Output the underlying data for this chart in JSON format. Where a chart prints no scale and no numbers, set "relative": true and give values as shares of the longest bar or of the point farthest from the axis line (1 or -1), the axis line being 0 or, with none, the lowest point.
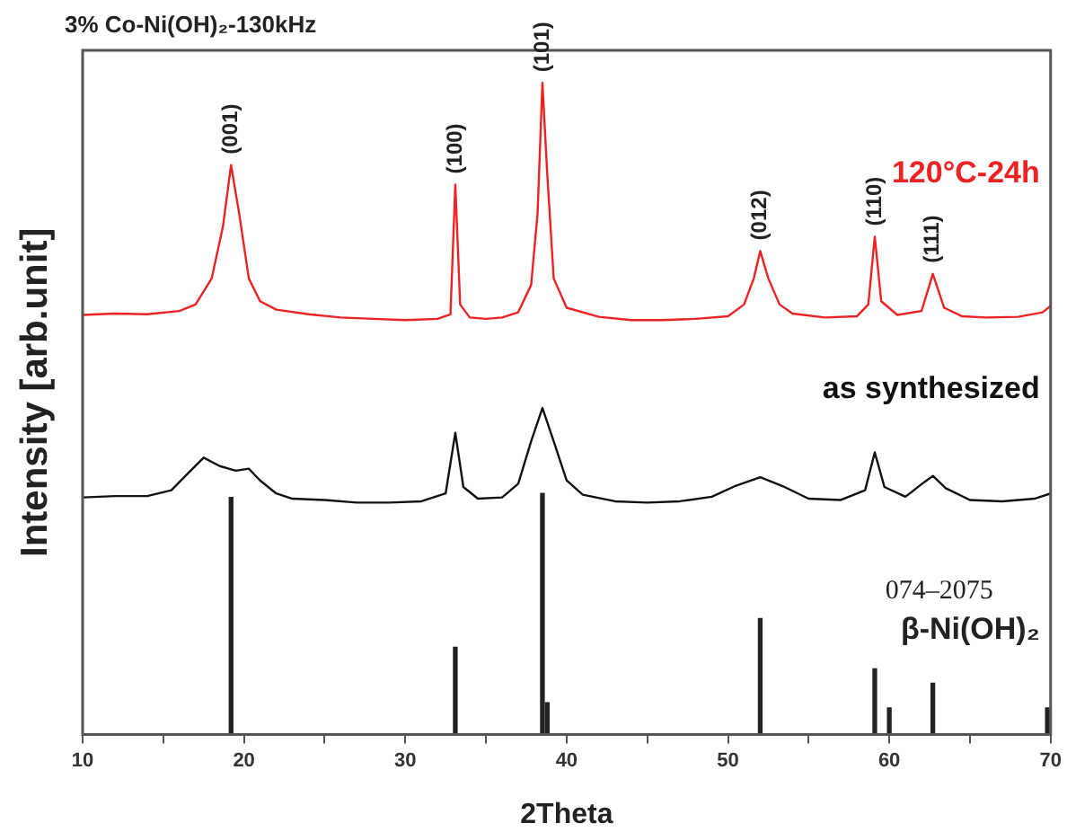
{
  "chart_data": {
    "type": "line",
    "title": "3% Co-Ni(OH)₂-130kHz",
    "xlabel": "2Theta",
    "ylabel": "Intensity [arb.unit]",
    "relative": true,
    "xlim": [
      10,
      70
    ],
    "xticks": [
      10,
      {
        "value": 15,
        "label": null
      },
      20,
      {
        "value": 25,
        "label": null
      },
      30,
      {
        "value": 35,
        "label": null
      },
      40,
      {
        "value": 45,
        "label": null
      },
      50,
      {
        "value": 55,
        "label": null
      },
      60,
      {
        "value": 65,
        "label": null
      },
      70
    ],
    "grid": false,
    "legend": false,
    "marker": "none",
    "line_style": "solid",
    "series": [
      {
        "name": "120°C-24h",
        "color": "#ee2222",
        "x": [
          10,
          12,
          14,
          16,
          17,
          18,
          18.7,
          19.2,
          19.7,
          20.3,
          21,
          22,
          24,
          26,
          28,
          30,
          32,
          32.8,
          33.1,
          33.4,
          34,
          35,
          36,
          37,
          37.8,
          38.2,
          38.5,
          38.8,
          39.2,
          40,
          42,
          44,
          46,
          48,
          50,
          51,
          51.6,
          52,
          52.5,
          53.2,
          54,
          56,
          58,
          58.7,
          59.1,
          59.5,
          60.5,
          62,
          62.7,
          63.4,
          64.5,
          66,
          68,
          69.5,
          70
        ],
        "values": [
          0.644,
          0.646,
          0.645,
          0.65,
          0.66,
          0.7,
          0.78,
          0.874,
          0.8,
          0.7,
          0.665,
          0.652,
          0.645,
          0.64,
          0.638,
          0.636,
          0.638,
          0.645,
          0.844,
          0.66,
          0.64,
          0.638,
          0.64,
          0.648,
          0.69,
          0.8,
          1.0,
          0.86,
          0.7,
          0.655,
          0.641,
          0.636,
          0.636,
          0.638,
          0.642,
          0.66,
          0.7,
          0.742,
          0.7,
          0.66,
          0.646,
          0.64,
          0.642,
          0.66,
          0.764,
          0.665,
          0.644,
          0.65,
          0.707,
          0.655,
          0.642,
          0.64,
          0.641,
          0.648,
          0.658
        ]
      },
      {
        "name": "as synthesized",
        "color": "#111111",
        "x": [
          10,
          12,
          14,
          15.5,
          16.5,
          17.5,
          18.5,
          19.5,
          20.3,
          21,
          22,
          23,
          25,
          27,
          29,
          31,
          32.5,
          33.1,
          33.6,
          34.5,
          36,
          37,
          37.8,
          38.5,
          39.2,
          40,
          41,
          43,
          45,
          47,
          49,
          50.5,
          52,
          53.5,
          55,
          57,
          58.5,
          59.1,
          59.7,
          61,
          62.2,
          62.7,
          63.5,
          65,
          67,
          69,
          70
        ],
        "values": [
          0.364,
          0.366,
          0.366,
          0.375,
          0.4,
          0.425,
          0.412,
          0.405,
          0.408,
          0.39,
          0.37,
          0.362,
          0.36,
          0.356,
          0.356,
          0.358,
          0.37,
          0.463,
          0.38,
          0.362,
          0.364,
          0.385,
          0.45,
          0.501,
          0.45,
          0.39,
          0.368,
          0.358,
          0.356,
          0.358,
          0.365,
          0.382,
          0.395,
          0.38,
          0.362,
          0.36,
          0.375,
          0.433,
          0.38,
          0.365,
          0.388,
          0.397,
          0.378,
          0.36,
          0.358,
          0.362,
          0.37
        ]
      },
      {
        "name": "β-Ni(OH)₂",
        "color": "#222222",
        "type": "bar",
        "x": [
          19.2,
          33.1,
          38.5,
          38.8,
          52,
          59.1,
          60,
          62.7,
          69.8
        ],
        "values": [
          0.364,
          0.134,
          0.37,
          0.049,
          0.178,
          0.101,
          0.041,
          0.079,
          0.041
        ]
      }
    ],
    "annotations": [
      {
        "text": "(001)",
        "x": 19.2,
        "y": 0.874
      },
      {
        "text": "(100)",
        "x": 33.1,
        "y": 0.844
      },
      {
        "text": "(101)",
        "x": 38.5,
        "y": 1.0
      },
      {
        "text": "(012)",
        "x": 52,
        "y": 0.742
      },
      {
        "text": "(110)",
        "x": 59.1,
        "y": 0.764
      },
      {
        "text": "(111)",
        "x": 62.7,
        "y": 0.707
      },
      "074–2075"
    ]
  }
}
